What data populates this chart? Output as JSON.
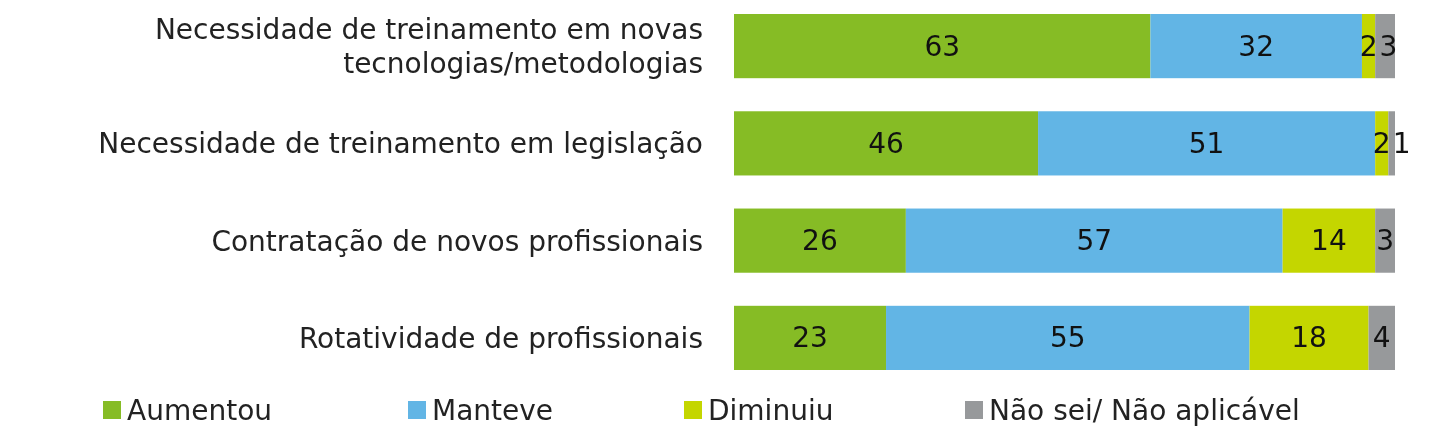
{
  "chart_data": {
    "type": "bar",
    "orientation": "horizontal",
    "stacked": true,
    "data_labels": true,
    "legend": "bottom",
    "tick_labels": "y",
    "xlim": [
      0,
      100
    ],
    "categories": [
      "Necessidade de treinamento em novas tecnologias/metodologias",
      "Necessidade de treinamento em legislação",
      "Contratação de novos profissionais",
      "Rotatividade de profissionais"
    ],
    "series": [
      {
        "name": "Aumentou",
        "color": "#86bc25",
        "values": [
          63,
          46,
          26,
          23
        ]
      },
      {
        "name": "Manteve",
        "color": "#62b5e5",
        "values": [
          32,
          51,
          57,
          55
        ]
      },
      {
        "name": "Diminuiu",
        "color": "#c4d600",
        "values": [
          2,
          2,
          14,
          18
        ]
      },
      {
        "name": "Não sei/ Não aplicável",
        "color": "#97999b",
        "values": [
          3,
          1,
          3,
          4
        ]
      }
    ]
  }
}
